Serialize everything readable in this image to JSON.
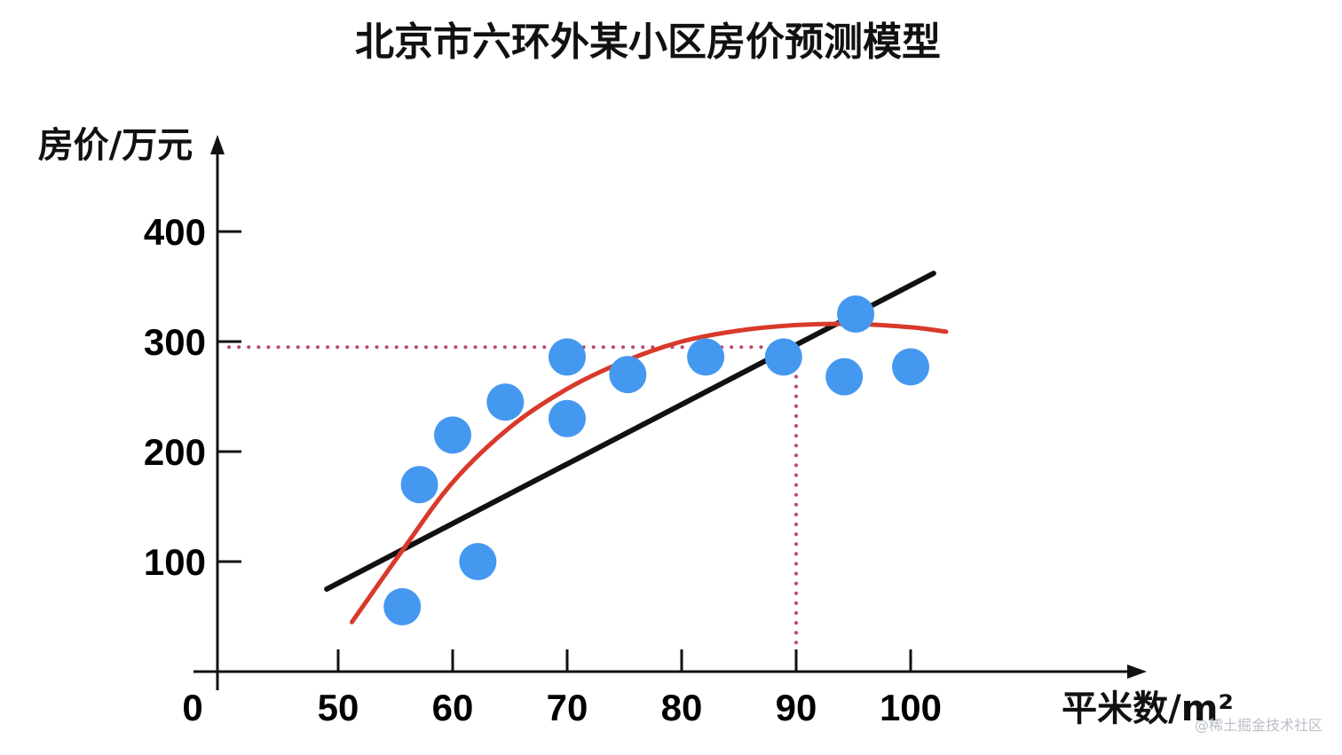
{
  "watermark": "@稀土掘金技术社区",
  "colors": {
    "points": "#4598f0",
    "linear_fit": "#111111",
    "curve_fit": "#d8392b",
    "guide": "#c0486a",
    "axis": "#111111"
  },
  "chart_data": {
    "type": "scatter",
    "title": "北京市六环外某小区房价预测模型",
    "xlabel": "平米数/m²",
    "ylabel": "房价/万元",
    "origin_label": "0",
    "x_ticks": [
      50,
      60,
      70,
      80,
      90,
      100
    ],
    "y_ticks": [
      100,
      200,
      300,
      400
    ],
    "points": [
      {
        "x": 55.6,
        "y": 59
      },
      {
        "x": 57.1,
        "y": 170
      },
      {
        "x": 60.0,
        "y": 215
      },
      {
        "x": 62.2,
        "y": 100
      },
      {
        "x": 64.6,
        "y": 245
      },
      {
        "x": 70.0,
        "y": 230
      },
      {
        "x": 70.0,
        "y": 286
      },
      {
        "x": 75.3,
        "y": 270
      },
      {
        "x": 82.1,
        "y": 286
      },
      {
        "x": 88.9,
        "y": 286
      },
      {
        "x": 94.2,
        "y": 268
      },
      {
        "x": 95.2,
        "y": 325
      },
      {
        "x": 100.0,
        "y": 277
      }
    ],
    "linear_fit": {
      "x": [
        49,
        102
      ],
      "y": [
        75,
        362
      ]
    },
    "curve_fit": [
      {
        "x": 51.2,
        "y": 45
      },
      {
        "x": 55.6,
        "y": 110
      },
      {
        "x": 60.0,
        "y": 172
      },
      {
        "x": 65.0,
        "y": 222
      },
      {
        "x": 70.0,
        "y": 257
      },
      {
        "x": 75.0,
        "y": 282
      },
      {
        "x": 80.0,
        "y": 300
      },
      {
        "x": 85.0,
        "y": 310
      },
      {
        "x": 90.0,
        "y": 315
      },
      {
        "x": 95.0,
        "y": 316
      },
      {
        "x": 100.0,
        "y": 313
      },
      {
        "x": 103.1,
        "y": 309
      }
    ],
    "guide": {
      "x": 90,
      "y": 295
    },
    "grid": false,
    "legend": "none"
  }
}
